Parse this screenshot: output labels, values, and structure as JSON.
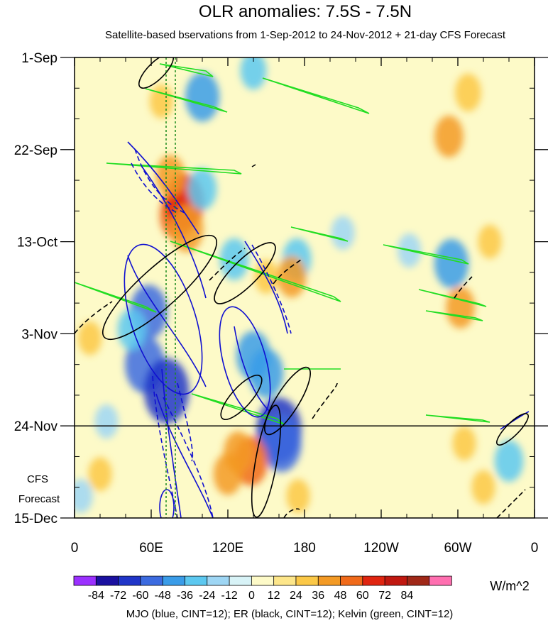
{
  "chart_data": {
    "type": "heatmap",
    "title": "OLR anomalies: 7.5S - 7.5N",
    "subtitle": "Satellite-based bservations from 1-Sep-2012 to 24-Nov-2012 + 21-day CFS Forecast",
    "x_ticks": [
      "0",
      "60E",
      "120E",
      "180",
      "120W",
      "60W",
      "0"
    ],
    "x_tick_values": [
      0,
      60,
      120,
      180,
      240,
      300,
      360
    ],
    "y_ticks": [
      "1-Sep",
      "22-Sep",
      "13-Oct",
      "3-Nov",
      "24-Nov",
      "15-Dec"
    ],
    "y_tick_days": [
      0,
      21,
      42,
      63,
      84,
      105
    ],
    "forecast_start_label": "24-Nov",
    "forecast_label": [
      "CFS",
      "Forecast"
    ],
    "colorbar": {
      "labels": [
        "-84",
        "-72",
        "-60",
        "-48",
        "-36",
        "-24",
        "-12",
        "0",
        "12",
        "24",
        "36",
        "48",
        "60",
        "72",
        "84"
      ],
      "colors": [
        "#9b30ff",
        "#1a10a0",
        "#2035c8",
        "#3c6be0",
        "#3a9ce8",
        "#5cc8f0",
        "#9ed6f4",
        "#d8f3f7",
        "#fdfac8",
        "#fde68a",
        "#fbc847",
        "#f39a25",
        "#f06a1a",
        "#e02510",
        "#c01810",
        "#a02818",
        "#ff6fb0"
      ],
      "units": "W/m^2"
    },
    "footer": "MJO (blue, CINT=12); ER (black, CINT=12); Kelvin (green, CINT=12)",
    "anomaly_features": [
      {
        "lon": 55,
        "day": 70,
        "value": -60
      },
      {
        "lon": 72,
        "day": 76,
        "value": -72
      },
      {
        "lon": 58,
        "day": 58,
        "value": -55
      },
      {
        "lon": 45,
        "day": 62,
        "value": -36
      },
      {
        "lon": 80,
        "day": 36,
        "value": 48
      },
      {
        "lon": 86,
        "day": 33,
        "value": 60
      },
      {
        "lon": 88,
        "day": 39,
        "value": 45
      },
      {
        "lon": 75,
        "day": 27,
        "value": 36
      },
      {
        "lon": 68,
        "day": 10,
        "value": 24
      },
      {
        "lon": 100,
        "day": 9,
        "value": -48
      },
      {
        "lon": 100,
        "day": 30,
        "value": -36
      },
      {
        "lon": 125,
        "day": 46,
        "value": -36
      },
      {
        "lon": 140,
        "day": 3,
        "value": -30
      },
      {
        "lon": 160,
        "day": 85,
        "value": -72
      },
      {
        "lon": 162,
        "day": 88,
        "value": -60
      },
      {
        "lon": 150,
        "day": 72,
        "value": -48
      },
      {
        "lon": 140,
        "day": 68,
        "value": -48
      },
      {
        "lon": 138,
        "day": 92,
        "value": 48
      },
      {
        "lon": 128,
        "day": 90,
        "value": 36
      },
      {
        "lon": 120,
        "day": 95,
        "value": 36
      },
      {
        "lon": 174,
        "day": 46,
        "value": -36
      },
      {
        "lon": 170,
        "day": 50,
        "value": 36
      },
      {
        "lon": 150,
        "day": 50,
        "value": 24
      },
      {
        "lon": 175,
        "day": 100,
        "value": 24
      },
      {
        "lon": 210,
        "day": 40,
        "value": -24
      },
      {
        "lon": 262,
        "day": 44,
        "value": -24
      },
      {
        "lon": 295,
        "day": 47,
        "value": -48
      },
      {
        "lon": 302,
        "day": 57,
        "value": 36
      },
      {
        "lon": 293,
        "day": 18,
        "value": 36
      },
      {
        "lon": 308,
        "day": 8,
        "value": 30
      },
      {
        "lon": 305,
        "day": 88,
        "value": 24
      },
      {
        "lon": 340,
        "day": 92,
        "value": -36
      },
      {
        "lon": 320,
        "day": 98,
        "value": 24
      },
      {
        "lon": 325,
        "day": 42,
        "value": 24
      },
      {
        "lon": 12,
        "day": 64,
        "value": 24
      },
      {
        "lon": 20,
        "day": 95,
        "value": 24
      },
      {
        "lon": 25,
        "day": 83,
        "value": -24
      },
      {
        "lon": 5,
        "day": 100,
        "value": -24
      }
    ]
  }
}
